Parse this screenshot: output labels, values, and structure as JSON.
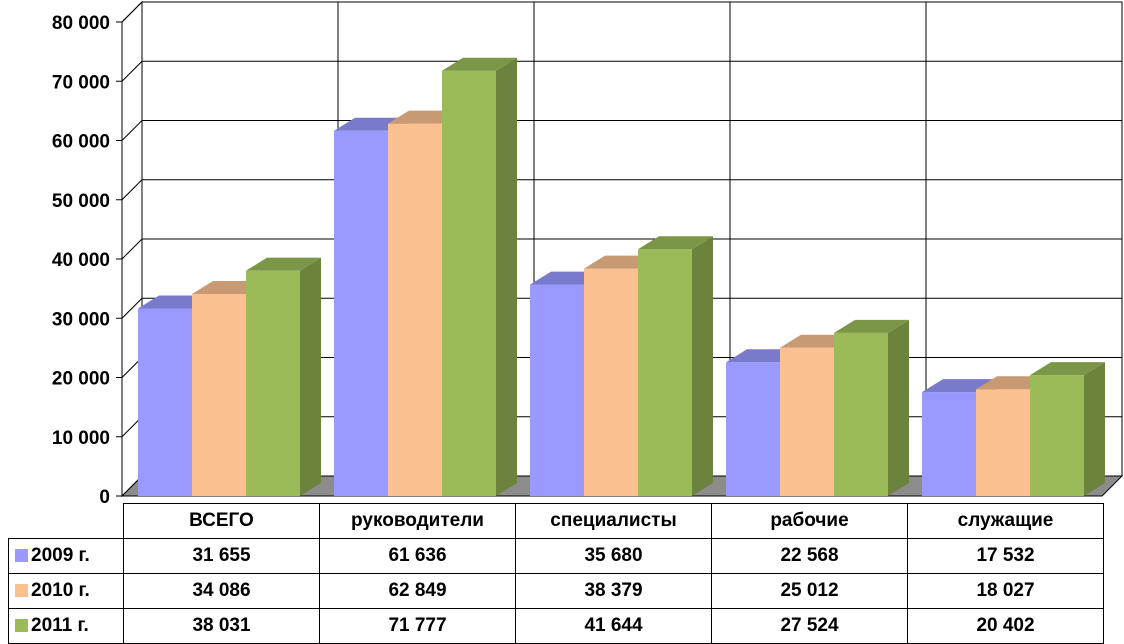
{
  "chart_data": {
    "type": "bar",
    "categories": [
      "ВСЕГО",
      "руководители",
      "специалисты",
      "рабочие",
      "служащие"
    ],
    "series": [
      {
        "name": "2009 г.",
        "values": [
          31655,
          61636,
          35680,
          22568,
          17532
        ]
      },
      {
        "name": "2010 г.",
        "values": [
          34086,
          62849,
          38379,
          25012,
          18027
        ]
      },
      {
        "name": "2011 г.",
        "values": [
          38031,
          71777,
          41644,
          27524,
          20402
        ]
      }
    ],
    "ylim": [
      0,
      80000
    ],
    "ytick_values": [
      0,
      10000,
      20000,
      30000,
      40000,
      50000,
      60000,
      70000,
      80000
    ],
    "ytick_labels": [
      "0",
      "10 000",
      "20 000",
      "30 000",
      "40 000",
      "50 000",
      "60 000",
      "70 000",
      "80 000"
    ],
    "table_values": [
      [
        "31 655",
        "61 636",
        "35 680",
        "22 568",
        "17 532"
      ],
      [
        "34 086",
        "62 849",
        "38 379",
        "25 012",
        "18 027"
      ],
      [
        "38 031",
        "71 777",
        "41 644",
        "27 524",
        "20 402"
      ]
    ],
    "grid": true,
    "legend": "data-table-left",
    "colors": {
      "series": [
        "#9999ff",
        "#fac090",
        "#9bbb59"
      ],
      "series_top": [
        "#7a7acc",
        "#c89a73",
        "#7c9647"
      ],
      "series_side": [
        "#6b6bb3",
        "#af8665",
        "#6c833e"
      ],
      "floor": "#8c8c8c"
    }
  }
}
